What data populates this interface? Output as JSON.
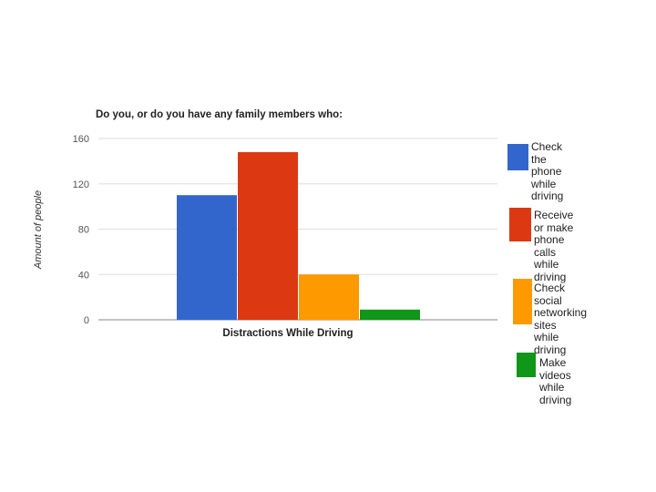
{
  "chart_data": {
    "type": "bar",
    "title": "Do you, or do you have any family members who:",
    "xlabel": "Distractions While Driving",
    "ylabel": "Amount of people",
    "categories": [
      "Distractions While Driving"
    ],
    "series": [
      {
        "name": "Check the phone\nwhile driving",
        "values": [
          110
        ],
        "color": "#3366cc"
      },
      {
        "name": "Receive or make\nphone calls\nwhile driving",
        "values": [
          148
        ],
        "color": "#dc3912"
      },
      {
        "name": "Check social\nnetworking sites\nwhile driving",
        "values": [
          40
        ],
        "color": "#ff9900"
      },
      {
        "name": "Make videos\nwhile driving",
        "values": [
          9
        ],
        "color": "#109618"
      }
    ],
    "ylim": [
      0,
      160
    ],
    "yticks": [
      0,
      40,
      80,
      120,
      160
    ],
    "grid": true,
    "legend": "right"
  }
}
